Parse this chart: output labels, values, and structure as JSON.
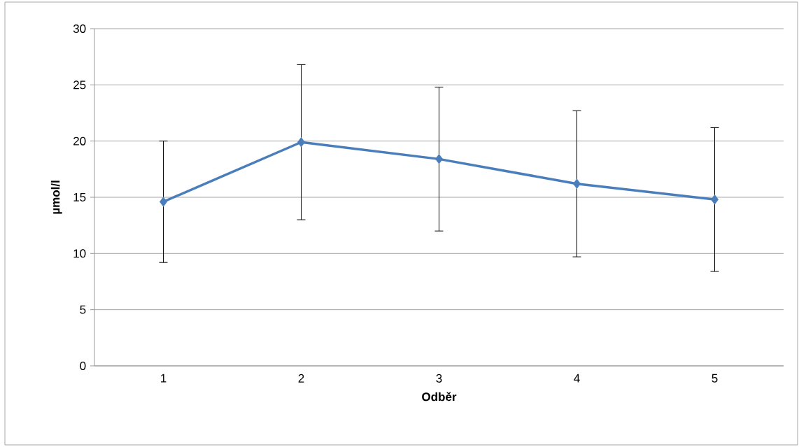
{
  "chart_data": {
    "type": "line",
    "xlabel": "Odběr",
    "ylabel": "µmol/l",
    "categories": [
      "1",
      "2",
      "3",
      "4",
      "5"
    ],
    "series": [
      {
        "color": "#4a7ebb",
        "values": [
          14.6,
          19.9,
          18.4,
          16.2,
          14.8
        ],
        "errors": [
          5.4,
          6.9,
          6.4,
          6.5,
          6.4
        ]
      }
    ],
    "ylim": [
      0,
      30
    ],
    "yticks": [
      0,
      5,
      10,
      15,
      20,
      25,
      30
    ],
    "grid": "y",
    "marker": "diamond",
    "line_style": "solid"
  }
}
